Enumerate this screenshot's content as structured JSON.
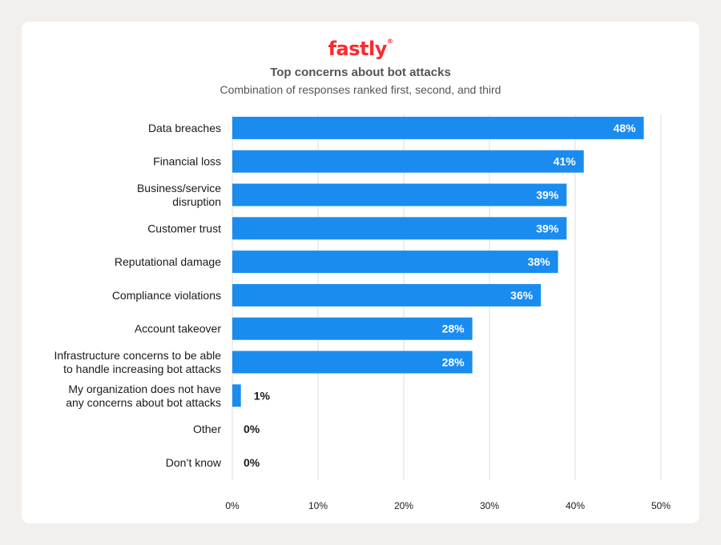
{
  "logo": {
    "text": "fastly",
    "mark": "®",
    "color": "#ff282d"
  },
  "header": {
    "title": "Top concerns about bot attacks",
    "subtitle": "Combination of responses ranked first, second, and third"
  },
  "colors": {
    "bar": "#1a8cf0",
    "grid": "#dedede"
  },
  "chart_data": {
    "type": "bar",
    "orientation": "horizontal",
    "title": "Top concerns about bot attacks",
    "subtitle": "Combination of responses ranked first, second, and third",
    "categories": [
      [
        "Data breaches"
      ],
      [
        "Financial loss"
      ],
      [
        "Business/service",
        "disruption"
      ],
      [
        "Customer trust"
      ],
      [
        "Reputational damage"
      ],
      [
        "Compliance violations"
      ],
      [
        "Account takeover"
      ],
      [
        "Infrastructure concerns to be able",
        "to handle increasing bot attacks"
      ],
      [
        "My organization does not have",
        "any concerns about bot attacks"
      ],
      [
        "Other"
      ],
      [
        "Don’t know"
      ]
    ],
    "values": [
      48,
      41,
      39,
      39,
      38,
      36,
      28,
      28,
      1,
      0,
      0
    ],
    "value_labels": [
      "48%",
      "41%",
      "39%",
      "39%",
      "38%",
      "36%",
      "28%",
      "28%",
      "1%",
      "0%",
      "0%"
    ],
    "xlim": [
      0,
      50
    ],
    "xticks": [
      0,
      10,
      20,
      30,
      40,
      50
    ],
    "xtick_labels": [
      "0%",
      "10%",
      "20%",
      "30%",
      "40%",
      "50%"
    ],
    "grid": true,
    "legend": "none"
  }
}
